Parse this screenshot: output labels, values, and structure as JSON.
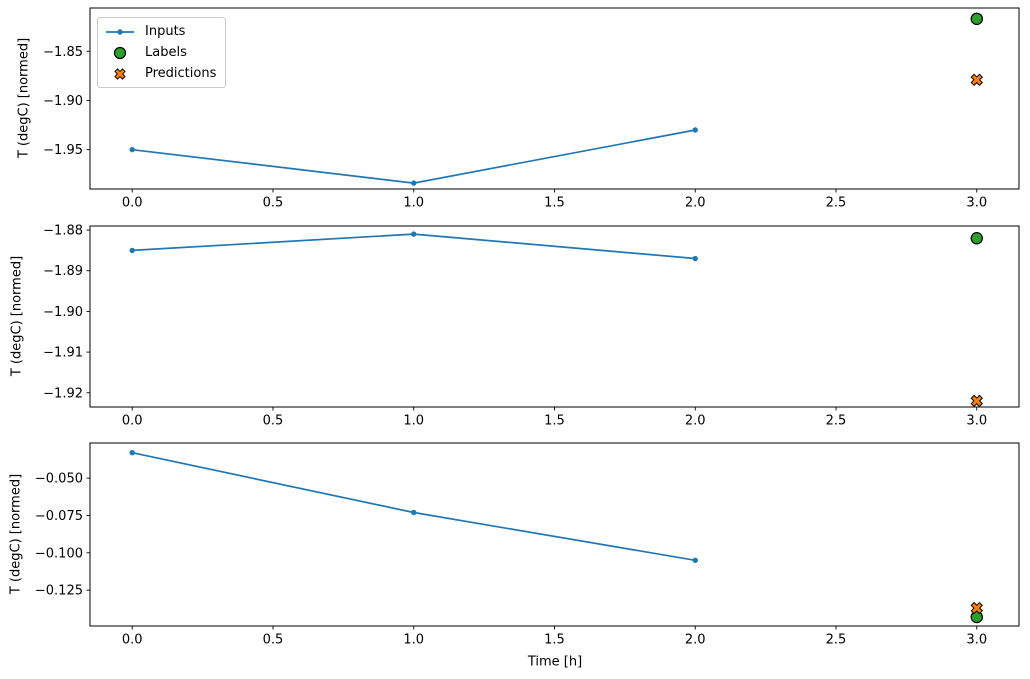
{
  "figure": {
    "background_color": "#ffffff",
    "text_color": "#000000",
    "axes_edge_color": "#000000"
  },
  "chart_data": [
    {
      "type": "line+scatter",
      "title": "",
      "xlabel": "",
      "ylabel": "T (degC) [normed]",
      "xlim": [
        -0.15,
        3.15
      ],
      "ylim": [
        -1.99,
        -1.806
      ],
      "grid": false,
      "xticks": [
        0.0,
        0.5,
        1.0,
        1.5,
        2.0,
        2.5,
        3.0
      ],
      "xtick_labels": [
        "0.0",
        "0.5",
        "1.0",
        "1.5",
        "2.0",
        "2.5",
        "3.0"
      ],
      "yticks": [
        -1.85,
        -1.9,
        -1.95
      ],
      "ytick_labels": [
        "−1.85",
        "−1.90",
        "−1.95"
      ],
      "legend": {
        "visible": true,
        "location": "upper left",
        "entries": [
          "Inputs",
          "Labels",
          "Predictions"
        ]
      },
      "series": [
        {
          "name": "Inputs",
          "plot": "line",
          "marker": "dot",
          "color": "#1f77b4",
          "x": [
            0,
            1,
            2
          ],
          "y": [
            -1.95,
            -1.984,
            -1.93
          ]
        },
        {
          "name": "Labels",
          "plot": "scatter",
          "marker": "circle",
          "color": "#2ca02c",
          "edge_color": "#000000",
          "x": [
            3
          ],
          "y": [
            -1.817
          ]
        },
        {
          "name": "Predictions",
          "plot": "scatter",
          "marker": "x",
          "color": "#ff7f0e",
          "edge_color": "#000000",
          "x": [
            3
          ],
          "y": [
            -1.879
          ]
        }
      ]
    },
    {
      "type": "line+scatter",
      "title": "",
      "xlabel": "",
      "ylabel": "T (degC) [normed]",
      "xlim": [
        -0.15,
        3.15
      ],
      "ylim": [
        -1.9235,
        -1.879
      ],
      "grid": false,
      "xticks": [
        0.0,
        0.5,
        1.0,
        1.5,
        2.0,
        2.5,
        3.0
      ],
      "xtick_labels": [
        "0.0",
        "0.5",
        "1.0",
        "1.5",
        "2.0",
        "2.5",
        "3.0"
      ],
      "yticks": [
        -1.88,
        -1.89,
        -1.9,
        -1.91,
        -1.92
      ],
      "ytick_labels": [
        "−1.88",
        "−1.89",
        "−1.90",
        "−1.91",
        "−1.92"
      ],
      "legend": {
        "visible": false
      },
      "series": [
        {
          "name": "Inputs",
          "plot": "line",
          "marker": "dot",
          "color": "#1f77b4",
          "x": [
            0,
            1,
            2
          ],
          "y": [
            -1.885,
            -1.881,
            -1.887
          ]
        },
        {
          "name": "Labels",
          "plot": "scatter",
          "marker": "circle",
          "color": "#2ca02c",
          "edge_color": "#000000",
          "x": [
            3
          ],
          "y": [
            -1.882
          ]
        },
        {
          "name": "Predictions",
          "plot": "scatter",
          "marker": "x",
          "color": "#ff7f0e",
          "edge_color": "#000000",
          "x": [
            3
          ],
          "y": [
            -1.922
          ]
        }
      ]
    },
    {
      "type": "line+scatter",
      "title": "",
      "xlabel": "Time [h]",
      "ylabel": "T (degC) [normed]",
      "xlim": [
        -0.15,
        3.15
      ],
      "ylim": [
        -0.149,
        -0.0265
      ],
      "grid": false,
      "xticks": [
        0.0,
        0.5,
        1.0,
        1.5,
        2.0,
        2.5,
        3.0
      ],
      "xtick_labels": [
        "0.0",
        "0.5",
        "1.0",
        "1.5",
        "2.0",
        "2.5",
        "3.0"
      ],
      "yticks": [
        -0.05,
        -0.075,
        -0.1,
        -0.125
      ],
      "ytick_labels": [
        "−0.050",
        "−0.075",
        "−0.100",
        "−0.125"
      ],
      "legend": {
        "visible": false
      },
      "series": [
        {
          "name": "Inputs",
          "plot": "line",
          "marker": "dot",
          "color": "#1f77b4",
          "x": [
            0,
            1,
            2
          ],
          "y": [
            -0.033,
            -0.073,
            -0.105
          ]
        },
        {
          "name": "Labels",
          "plot": "scatter",
          "marker": "circle",
          "color": "#2ca02c",
          "edge_color": "#000000",
          "x": [
            3
          ],
          "y": [
            -0.143
          ]
        },
        {
          "name": "Predictions",
          "plot": "scatter",
          "marker": "x",
          "color": "#ff7f0e",
          "edge_color": "#000000",
          "x": [
            3
          ],
          "y": [
            -0.137
          ]
        }
      ]
    }
  ]
}
